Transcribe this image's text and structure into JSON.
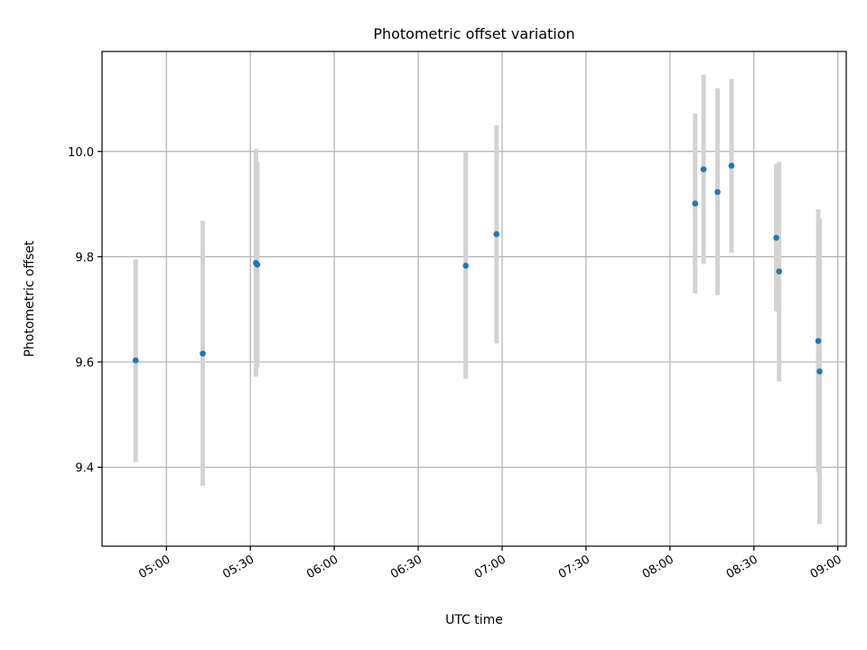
{
  "chart_data": {
    "type": "scatter",
    "title": "Photometric offset variation",
    "xlabel": "UTC time",
    "ylabel": "Photometric offset",
    "x_unit": "time of day (HH:MM, UTC)",
    "xlim": [
      "04:37",
      "09:03"
    ],
    "ylim": [
      9.25,
      10.19
    ],
    "x_ticks": [
      "05:00",
      "05:30",
      "06:00",
      "06:30",
      "07:00",
      "07:30",
      "08:00",
      "08:30",
      "09:00"
    ],
    "y_ticks": [
      9.4,
      9.6,
      9.8,
      10.0
    ],
    "y_tick_labels": [
      "9.4",
      "9.6",
      "9.8",
      "10.0"
    ],
    "grid": true,
    "legend": "none",
    "colors": {
      "point": "#1f77b4",
      "errorbar": "#d3d3d3",
      "grid": "#b0b0b0"
    },
    "points": [
      {
        "x": "04:49",
        "y": 9.603,
        "ylow": 9.41,
        "yhigh": 9.795
      },
      {
        "x": "05:13",
        "y": 9.616,
        "ylow": 9.365,
        "yhigh": 9.868
      },
      {
        "x": "05:32",
        "y": 9.788,
        "ylow": 9.572,
        "yhigh": 10.005
      },
      {
        "x": "05:32",
        "y": 9.785,
        "ylow": 9.59,
        "yhigh": 9.98
      },
      {
        "x": "06:47",
        "y": 9.783,
        "ylow": 9.568,
        "yhigh": 9.998
      },
      {
        "x": "06:58",
        "y": 9.843,
        "ylow": 9.635,
        "yhigh": 10.05
      },
      {
        "x": "08:09",
        "y": 9.901,
        "ylow": 9.73,
        "yhigh": 10.072
      },
      {
        "x": "08:12",
        "y": 9.966,
        "ylow": 9.786,
        "yhigh": 10.146
      },
      {
        "x": "08:17",
        "y": 9.923,
        "ylow": 9.727,
        "yhigh": 10.12
      },
      {
        "x": "08:22",
        "y": 9.973,
        "ylow": 9.808,
        "yhigh": 10.138
      },
      {
        "x": "08:38",
        "y": 9.836,
        "ylow": 9.696,
        "yhigh": 9.976
      },
      {
        "x": "08:39",
        "y": 9.772,
        "ylow": 9.563,
        "yhigh": 9.98
      },
      {
        "x": "08:53",
        "y": 9.64,
        "ylow": 9.39,
        "yhigh": 9.89
      },
      {
        "x": "08:53",
        "y": 9.582,
        "ylow": 9.292,
        "yhigh": 9.872
      }
    ]
  }
}
